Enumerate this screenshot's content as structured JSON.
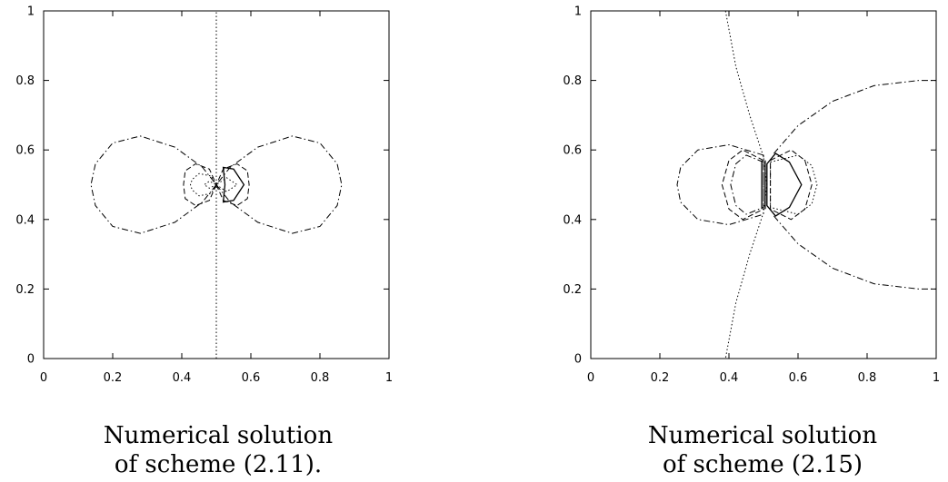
{
  "chart_data": [
    {
      "type": "contour",
      "title": "",
      "xlabel": "",
      "ylabel": "",
      "xlim": [
        0,
        1
      ],
      "ylim": [
        0,
        1
      ],
      "xticks": [
        "0",
        "0.2",
        "0.4",
        "0.6",
        "0.8",
        "1"
      ],
      "yticks": [
        "0",
        "0.2",
        "0.4",
        "0.6",
        "0.8",
        "1"
      ],
      "grid": false,
      "caption": [
        "Numerical solution",
        "of scheme (2.11)."
      ],
      "series": [
        {
          "style": "dotted",
          "closed": false,
          "points": [
            [
              0.5,
              0
            ],
            [
              0.5,
              1
            ]
          ]
        },
        {
          "style": "dashdot",
          "closed": true,
          "points": [
            [
              0.5,
              0.5
            ],
            [
              0.46,
              0.45
            ],
            [
              0.38,
              0.392
            ],
            [
              0.28,
              0.36
            ],
            [
              0.2,
              0.38
            ],
            [
              0.15,
              0.44
            ],
            [
              0.137,
              0.5
            ],
            [
              0.15,
              0.56
            ],
            [
              0.2,
              0.62
            ],
            [
              0.28,
              0.64
            ],
            [
              0.38,
              0.608
            ],
            [
              0.46,
              0.55
            ]
          ]
        },
        {
          "style": "dashdot",
          "closed": true,
          "points": [
            [
              0.5,
              0.5
            ],
            [
              0.54,
              0.45
            ],
            [
              0.62,
              0.392
            ],
            [
              0.72,
              0.36
            ],
            [
              0.8,
              0.38
            ],
            [
              0.85,
              0.44
            ],
            [
              0.863,
              0.5
            ],
            [
              0.85,
              0.56
            ],
            [
              0.8,
              0.62
            ],
            [
              0.72,
              0.64
            ],
            [
              0.62,
              0.608
            ],
            [
              0.54,
              0.55
            ]
          ]
        },
        {
          "style": "dashed",
          "closed": true,
          "points": [
            [
              0.5,
              0.5
            ],
            [
              0.48,
              0.455
            ],
            [
              0.44,
              0.44
            ],
            [
              0.41,
              0.46
            ],
            [
              0.405,
              0.5
            ],
            [
              0.41,
              0.54
            ],
            [
              0.44,
              0.56
            ],
            [
              0.48,
              0.545
            ]
          ]
        },
        {
          "style": "dashed",
          "closed": true,
          "points": [
            [
              0.5,
              0.5
            ],
            [
              0.52,
              0.455
            ],
            [
              0.56,
              0.44
            ],
            [
              0.59,
              0.46
            ],
            [
              0.595,
              0.5
            ],
            [
              0.59,
              0.54
            ],
            [
              0.56,
              0.56
            ],
            [
              0.52,
              0.545
            ]
          ]
        },
        {
          "style": "dotted",
          "closed": true,
          "points": [
            [
              0.5,
              0.5
            ],
            [
              0.485,
              0.475
            ],
            [
              0.45,
              0.468
            ],
            [
              0.43,
              0.485
            ],
            [
              0.425,
              0.5
            ],
            [
              0.43,
              0.515
            ],
            [
              0.45,
              0.532
            ],
            [
              0.485,
              0.525
            ]
          ]
        },
        {
          "style": "dotted",
          "closed": true,
          "points": [
            [
              0.5,
              0.5
            ],
            [
              0.48,
              0.49
            ],
            [
              0.465,
              0.5
            ],
            [
              0.48,
              0.51
            ]
          ]
        },
        {
          "style": "solid",
          "closed": true,
          "points": [
            [
              0.52,
              0.45
            ],
            [
              0.55,
              0.455
            ],
            [
              0.58,
              0.5
            ],
            [
              0.55,
              0.545
            ],
            [
              0.52,
              0.55
            ],
            [
              0.525,
              0.5
            ]
          ]
        },
        {
          "style": "dotted",
          "closed": true,
          "points": [
            [
              0.5,
              0.5
            ],
            [
              0.53,
              0.48
            ],
            [
              0.56,
              0.5
            ],
            [
              0.53,
              0.52
            ]
          ]
        }
      ]
    },
    {
      "type": "contour",
      "title": "",
      "xlabel": "",
      "ylabel": "",
      "xlim": [
        0,
        1
      ],
      "ylim": [
        0,
        1
      ],
      "xticks": [
        "0",
        "0.2",
        "0.4",
        "0.6",
        "0.8",
        "1"
      ],
      "yticks": [
        "0",
        "0.2",
        "0.4",
        "0.6",
        "0.8",
        "1"
      ],
      "grid": false,
      "caption": [
        "Numerical solution",
        "of scheme (2.15)"
      ],
      "series": [
        {
          "style": "dotted",
          "closed": false,
          "points": [
            [
              0.39,
              1
            ],
            [
              0.42,
              0.84
            ],
            [
              0.46,
              0.7
            ],
            [
              0.5,
              0.58
            ],
            [
              0.51,
              0.5
            ],
            [
              0.5,
              0.42
            ],
            [
              0.46,
              0.3
            ],
            [
              0.42,
              0.16
            ],
            [
              0.39,
              0
            ]
          ]
        },
        {
          "style": "dashdot",
          "closed": false,
          "points": [
            [
              0.53,
              0.59
            ],
            [
              0.6,
              0.67
            ],
            [
              0.7,
              0.74
            ],
            [
              0.82,
              0.785
            ],
            [
              0.95,
              0.8
            ],
            [
              1,
              0.8
            ]
          ]
        },
        {
          "style": "dashdot",
          "closed": false,
          "points": [
            [
              0.53,
              0.41
            ],
            [
              0.6,
              0.33
            ],
            [
              0.7,
              0.26
            ],
            [
              0.82,
              0.215
            ],
            [
              0.95,
              0.2
            ],
            [
              1,
              0.2
            ]
          ]
        },
        {
          "style": "dashdot",
          "closed": true,
          "points": [
            [
              0.5,
              0.585
            ],
            [
              0.4,
              0.615
            ],
            [
              0.31,
              0.6
            ],
            [
              0.26,
              0.55
            ],
            [
              0.25,
              0.5
            ],
            [
              0.26,
              0.45
            ],
            [
              0.31,
              0.4
            ],
            [
              0.4,
              0.385
            ],
            [
              0.5,
              0.415
            ]
          ]
        },
        {
          "style": "dashed",
          "closed": true,
          "points": [
            [
              0.5,
              0.57
            ],
            [
              0.44,
              0.6
            ],
            [
              0.4,
              0.57
            ],
            [
              0.38,
              0.5
            ],
            [
              0.4,
              0.43
            ],
            [
              0.44,
              0.4
            ],
            [
              0.5,
              0.43
            ]
          ]
        },
        {
          "style": "dashdot",
          "closed": true,
          "points": [
            [
              0.5,
              0.565
            ],
            [
              0.45,
              0.585
            ],
            [
              0.42,
              0.56
            ],
            [
              0.405,
              0.5
            ],
            [
              0.42,
              0.44
            ],
            [
              0.45,
              0.415
            ],
            [
              0.5,
              0.435
            ]
          ]
        },
        {
          "style": "dashed",
          "closed": true,
          "points": [
            [
              0.52,
              0.57
            ],
            [
              0.58,
              0.6
            ],
            [
              0.62,
              0.57
            ],
            [
              0.64,
              0.5
            ],
            [
              0.62,
              0.43
            ],
            [
              0.58,
              0.4
            ],
            [
              0.52,
              0.43
            ]
          ]
        },
        {
          "style": "dotted",
          "closed": true,
          "points": [
            [
              0.52,
              0.565
            ],
            [
              0.6,
              0.585
            ],
            [
              0.64,
              0.555
            ],
            [
              0.655,
              0.5
            ],
            [
              0.64,
              0.445
            ],
            [
              0.6,
              0.415
            ],
            [
              0.52,
              0.435
            ]
          ]
        },
        {
          "style": "solid",
          "closed": true,
          "points": [
            [
              0.51,
              0.56
            ],
            [
              0.535,
              0.59
            ],
            [
              0.575,
              0.565
            ],
            [
              0.61,
              0.5
            ],
            [
              0.575,
              0.435
            ],
            [
              0.535,
              0.41
            ],
            [
              0.51,
              0.44
            ],
            [
              0.51,
              0.5
            ]
          ]
        },
        {
          "style": "solid",
          "closed": false,
          "points": [
            [
              0.495,
              0.43
            ],
            [
              0.495,
              0.57
            ]
          ]
        },
        {
          "style": "solid",
          "closed": false,
          "points": [
            [
              0.505,
              0.43
            ],
            [
              0.505,
              0.57
            ]
          ]
        }
      ]
    }
  ]
}
